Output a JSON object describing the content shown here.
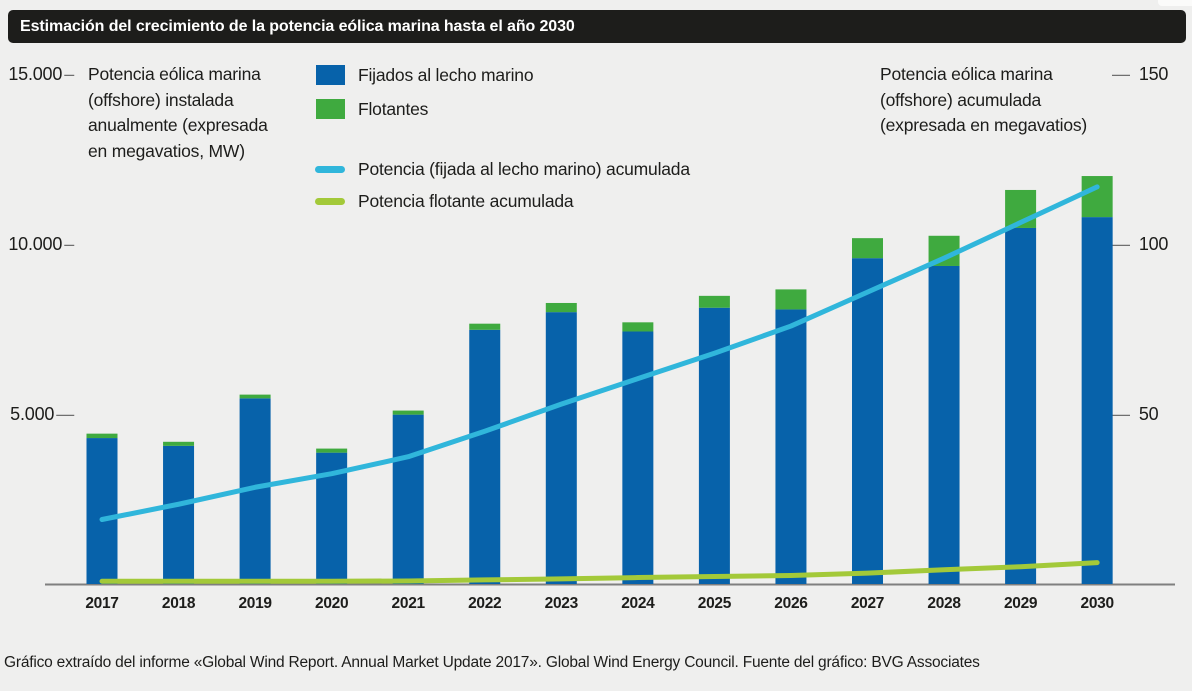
{
  "title": "Estimación del crecimiento de la potencia eólica marina hasta el año 2030",
  "footer": "Gráfico extraído del informe «Global Wind Report. Annual Market Update 2017». Global Wind Energy Council. Fuente del gráfico: BVG Associates",
  "colors": {
    "background": "#efefee",
    "title_bar": "#1d1d1b",
    "title_text": "#ffffff",
    "text": "#1d1d1b",
    "axis_line": "#7f7f7f",
    "bar_fixed": "#0762aa",
    "bar_floating": "#3faa3f",
    "line_fixed_cumulative": "#30b6db",
    "line_floating_cumulative": "#a3c939"
  },
  "left_axis_note": {
    "lines": [
      "Potencia eólica marina",
      "(offshore) instalada",
      "anualmente (expresada",
      "en megavatios, MW)"
    ]
  },
  "right_axis_note": {
    "lines": [
      "Potencia eólica marina",
      "(offshore) acumulada",
      "(expresada en megavatios)"
    ]
  },
  "legend": {
    "bars": [
      {
        "label": "Fijados al lecho marino",
        "color": "#0762aa"
      },
      {
        "label": "Flotantes",
        "color": "#3faa3f"
      }
    ],
    "lines": [
      {
        "label": "Potencia (fijada al lecho marino) acumulada",
        "color": "#30b6db"
      },
      {
        "label": "Potencia flotante acumulada",
        "color": "#a3c939"
      }
    ]
  },
  "chart_data": {
    "type": "bar",
    "title": "Estimación del crecimiento de la potencia eólica marina hasta el año 2030",
    "categories": [
      "2017",
      "2018",
      "2019",
      "2020",
      "2021",
      "2022",
      "2023",
      "2024",
      "2025",
      "2026",
      "2027",
      "2028",
      "2029",
      "2030"
    ],
    "series": [
      {
        "name": "Fijados al lecho marino",
        "type": "bar",
        "axis": "left",
        "color": "#0762aa",
        "values": [
          4300,
          4070,
          5470,
          3870,
          4990,
          7490,
          8010,
          7440,
          8140,
          8090,
          9600,
          9370,
          10490,
          10810
        ]
      },
      {
        "name": "Flotantes",
        "type": "bar",
        "axis": "left",
        "stacked": true,
        "color": "#3faa3f",
        "values": [
          130,
          120,
          110,
          120,
          120,
          180,
          270,
          270,
          350,
          590,
          590,
          890,
          1120,
          1210
        ]
      },
      {
        "name": "Potencia (fijada al lecho marino) acumulada",
        "type": "line",
        "axis": "right",
        "color": "#30b6db",
        "values": [
          19,
          23.5,
          28.5,
          32.5,
          37.5,
          45,
          53,
          60.5,
          68,
          76,
          86,
          96,
          106.5,
          117
        ]
      },
      {
        "name": "Potencia flotante acumulada",
        "type": "line",
        "axis": "right",
        "color": "#a3c939",
        "values": [
          0.8,
          0.8,
          0.8,
          0.8,
          0.9,
          1.2,
          1.5,
          1.9,
          2.2,
          2.5,
          3.2,
          4.2,
          5.1,
          6.3
        ]
      }
    ],
    "left_axis": {
      "title": "Potencia eólica marina (offshore) instalada anualmente (expresada en megavatios, MW)",
      "ticks": [
        {
          "value": 15000,
          "label": "15.000",
          "dash": "–"
        },
        {
          "value": 10000,
          "label": "10.000",
          "dash": "–"
        },
        {
          "value": 5000,
          "label": "5.000",
          "dash": "—"
        }
      ],
      "range": [
        0,
        15500
      ]
    },
    "right_axis": {
      "title": "Potencia eólica marina (offshore) acumulada (expresada en megavatios)",
      "ticks": [
        {
          "value": 150,
          "label": "150",
          "dash": "—"
        },
        {
          "value": 100,
          "label": "100",
          "dash": "—"
        },
        {
          "value": 50,
          "label": "50",
          "dash": "—"
        }
      ],
      "range": [
        0,
        155
      ]
    },
    "grid": false,
    "legend_position": "top"
  }
}
